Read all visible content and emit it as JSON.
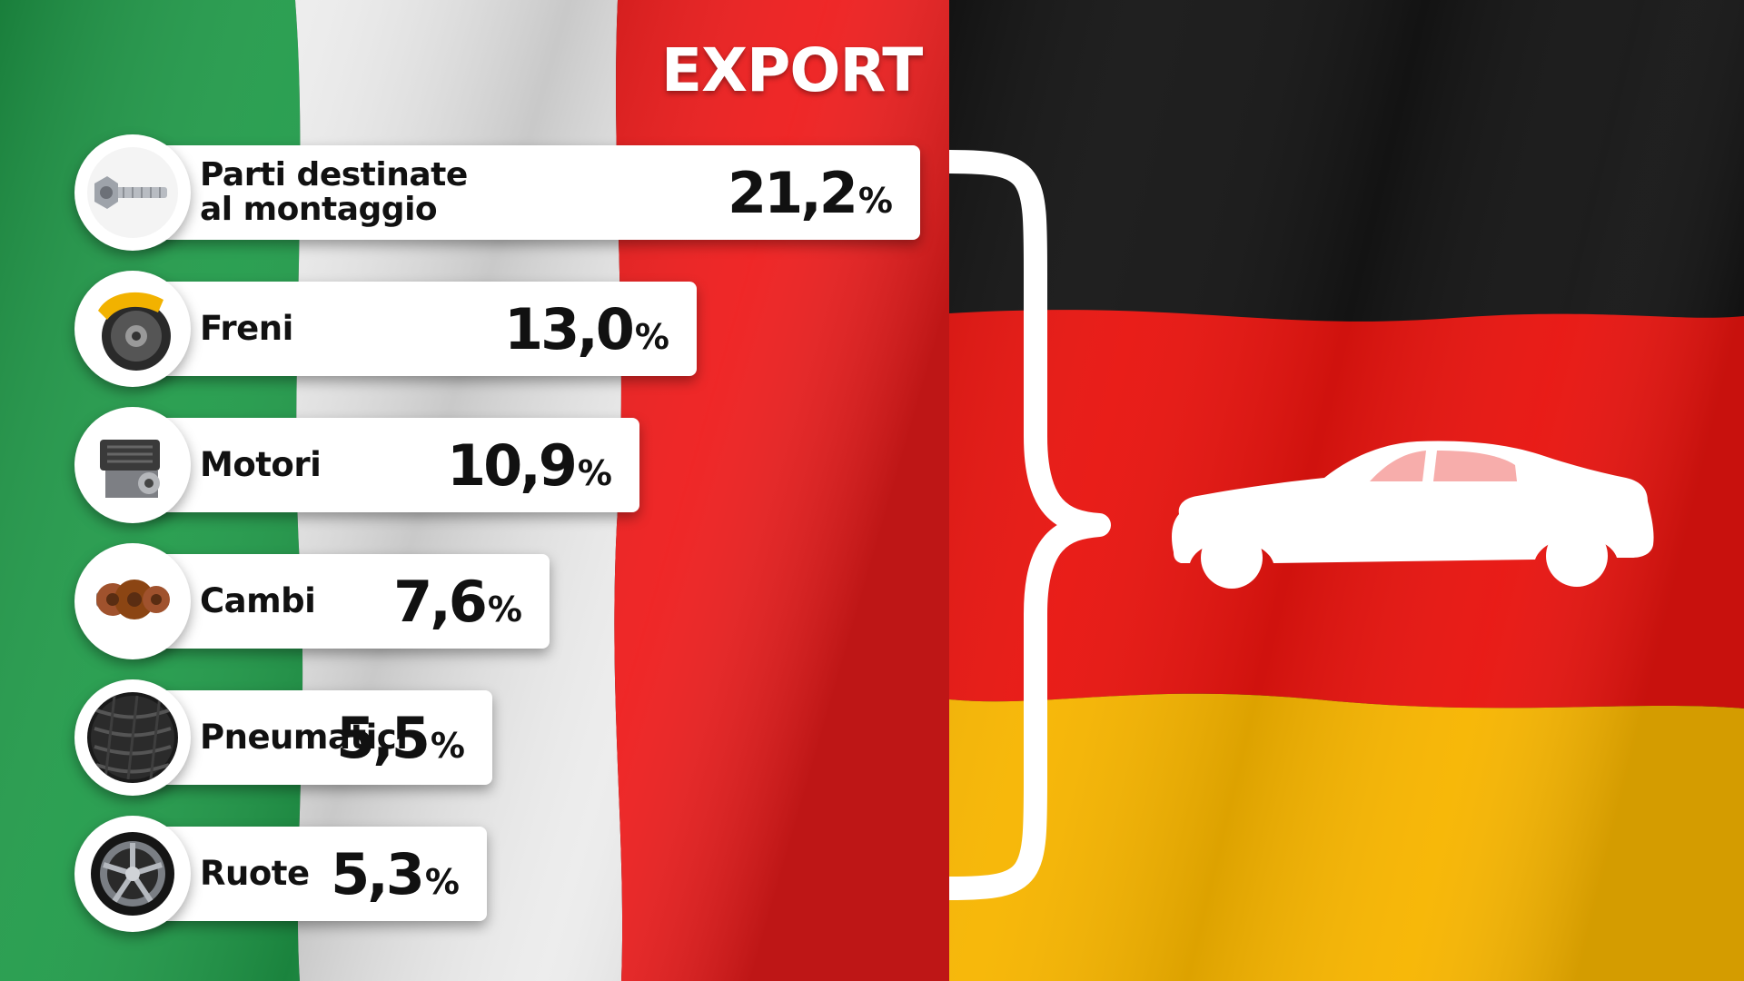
{
  "title": "EXPORT",
  "colors": {
    "italy_green": "#1f9a48",
    "italy_white": "#ececec",
    "italy_red": "#ee1c1c",
    "germany_black": "#151515",
    "germany_red": "#e8140f",
    "germany_gold": "#f7b500",
    "bar": "#ffffff",
    "text": "#111111"
  },
  "chart_data": {
    "type": "bar",
    "orientation": "horizontal",
    "title": "EXPORT",
    "categories": [
      "Parti destinate al montaggio",
      "Freni",
      "Motori",
      "Cambi",
      "Pneumatici",
      "Ruote"
    ],
    "label_lines": [
      [
        "Parti destinate",
        "al montaggio"
      ],
      [
        "Freni"
      ],
      [
        "Motori"
      ],
      [
        "Cambi"
      ],
      [
        "Pneumatici"
      ],
      [
        "Ruote"
      ]
    ],
    "value_text": [
      "21,2",
      "13,0",
      "10,9",
      "7,6",
      "5,5",
      "5,3"
    ],
    "values": [
      21.2,
      13.0,
      10.9,
      7.6,
      5.5,
      5.3
    ],
    "unit": "%",
    "icons": [
      "bolt-icon",
      "brake-caliper-icon",
      "engine-icon",
      "gearbox-icon",
      "tire-icon",
      "wheel-rim-icon"
    ],
    "grid": false,
    "legend": "none"
  }
}
